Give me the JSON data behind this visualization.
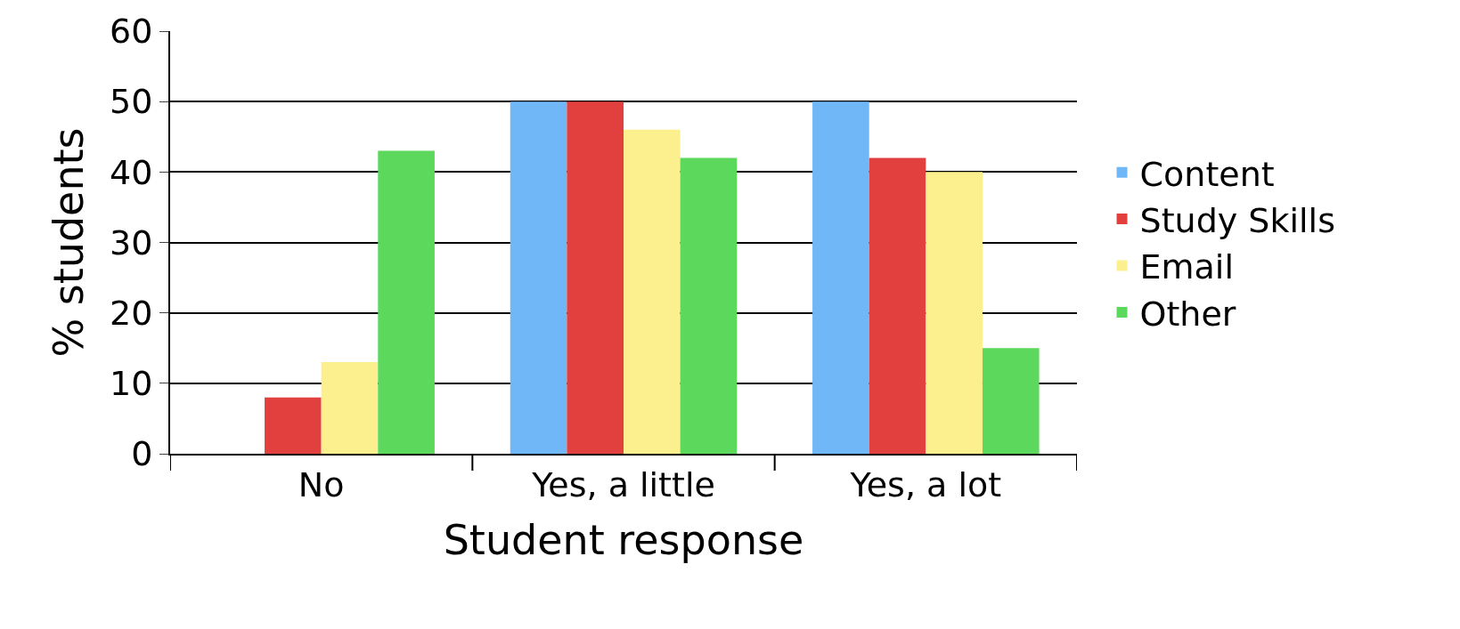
{
  "chart_data": {
    "type": "bar",
    "xlabel": "Student response",
    "ylabel": "% students",
    "categories": [
      "No",
      "Yes, a little",
      "Yes, a lot"
    ],
    "series": [
      {
        "name": "Content",
        "color": "#6fb7f7",
        "values": [
          0,
          50,
          50
        ]
      },
      {
        "name": "Study Skills",
        "color": "#e23f3f",
        "values": [
          8,
          50,
          42
        ]
      },
      {
        "name": "Email",
        "color": "#fbef8e",
        "values": [
          13,
          46,
          40
        ]
      },
      {
        "name": "Other",
        "color": "#5cd85c",
        "values": [
          43,
          42,
          15
        ]
      }
    ],
    "ylim": [
      0,
      60
    ],
    "yticks": [
      0,
      10,
      20,
      30,
      40,
      50,
      60
    ],
    "grid": "y",
    "legend": "right"
  }
}
